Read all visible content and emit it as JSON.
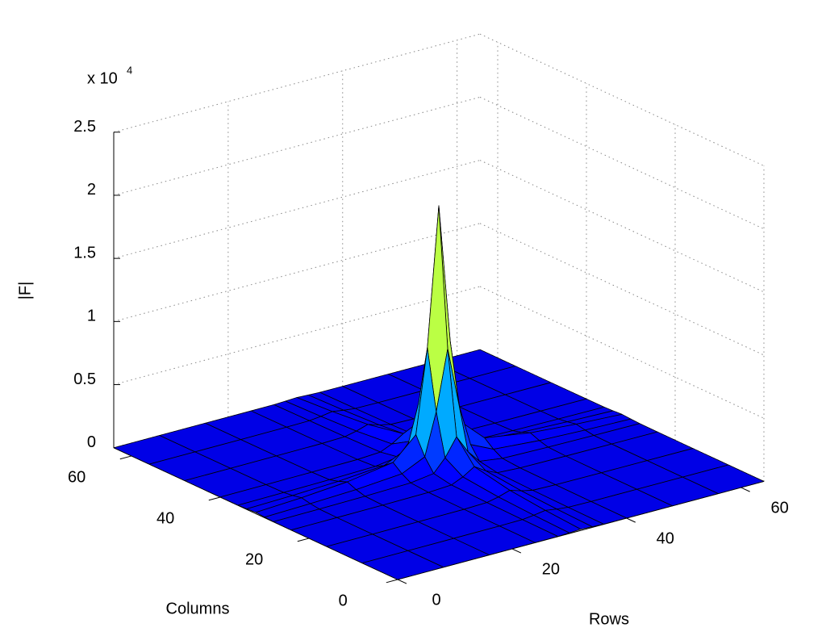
{
  "chart_data": {
    "type": "surface",
    "xlabel": "Rows",
    "ylabel": "Columns",
    "zlabel": "|F|",
    "z_exponent": "x 10",
    "z_exponent_power": "4",
    "x": [
      0,
      8,
      16,
      24,
      28,
      30,
      32,
      34,
      36,
      40,
      48,
      56,
      64
    ],
    "y": [
      0,
      8,
      16,
      24,
      28,
      30,
      32,
      34,
      36,
      40,
      48,
      56,
      64
    ],
    "z": [
      [
        0,
        1,
        3,
        6,
        14,
        48,
        95,
        48,
        14,
        6,
        3,
        1,
        0
      ],
      [
        1,
        4,
        9,
        17,
        43,
        143,
        285,
        143,
        43,
        17,
        9,
        4,
        1
      ],
      [
        3,
        9,
        17,
        34,
        86,
        285,
        570,
        285,
        86,
        34,
        17,
        9,
        3
      ],
      [
        6,
        17,
        34,
        68,
        171,
        570,
        1140,
        570,
        171,
        68,
        34,
        17,
        6
      ],
      [
        14,
        43,
        86,
        171,
        428,
        1425,
        2850,
        1425,
        428,
        171,
        86,
        43,
        14
      ],
      [
        48,
        143,
        285,
        570,
        1425,
        4750,
        9500,
        4750,
        1425,
        570,
        285,
        143,
        48
      ],
      [
        95,
        285,
        570,
        1140,
        2850,
        9500,
        20500,
        9500,
        2850,
        1140,
        570,
        285,
        95
      ],
      [
        48,
        143,
        285,
        570,
        1425,
        4750,
        9500,
        4750,
        1425,
        570,
        285,
        143,
        48
      ],
      [
        14,
        43,
        86,
        171,
        428,
        1425,
        2850,
        1425,
        428,
        171,
        86,
        43,
        14
      ],
      [
        6,
        17,
        34,
        68,
        171,
        570,
        1140,
        570,
        171,
        68,
        34,
        17,
        6
      ],
      [
        3,
        9,
        17,
        34,
        86,
        285,
        570,
        285,
        86,
        34,
        17,
        9,
        3
      ],
      [
        1,
        4,
        9,
        17,
        43,
        143,
        285,
        143,
        43,
        17,
        9,
        4,
        1
      ],
      [
        0,
        1,
        3,
        6,
        14,
        48,
        95,
        48,
        14,
        6,
        3,
        1,
        0
      ]
    ],
    "xlim": [
      0,
      64
    ],
    "ylim": [
      0,
      64
    ],
    "zlim": [
      0,
      25000
    ],
    "xticks": [
      0,
      20,
      40,
      60
    ],
    "yticks": [
      0,
      20,
      40,
      60
    ],
    "zticks": [
      0,
      {
        "value": 5000,
        "label": "0.5"
      },
      {
        "value": 10000,
        "label": "1"
      },
      {
        "value": 15000,
        "label": "1.5"
      },
      {
        "value": 20000,
        "label": "2"
      },
      {
        "value": 25000,
        "label": "2.5"
      }
    ],
    "colormap": "jet",
    "edge_color": "#000000",
    "grid": true
  }
}
